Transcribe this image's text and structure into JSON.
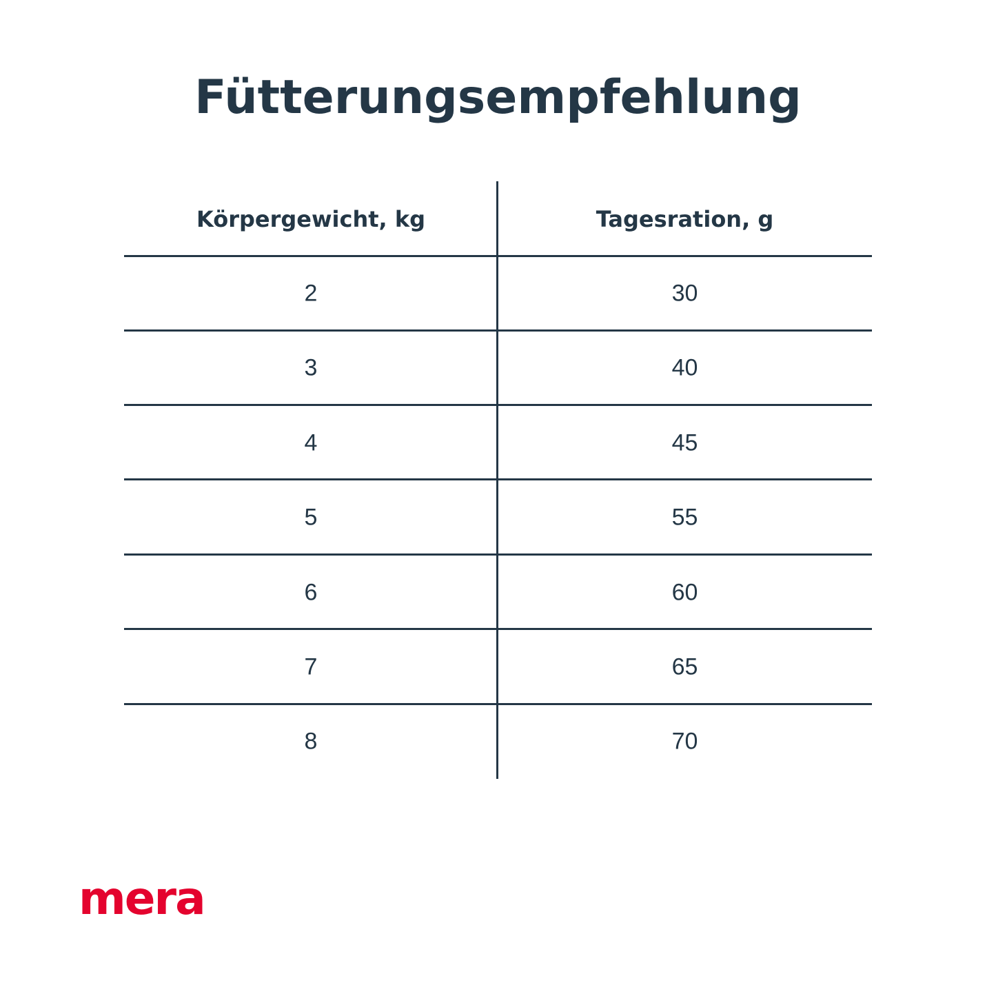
{
  "title": "Fütterungsempfehlung",
  "table": {
    "headers": [
      "Körpergewicht, kg",
      "Tagesration, g"
    ],
    "rows": [
      [
        "2",
        "30"
      ],
      [
        "3",
        "40"
      ],
      [
        "4",
        "45"
      ],
      [
        "5",
        "55"
      ],
      [
        "6",
        "60"
      ],
      [
        "7",
        "65"
      ],
      [
        "8",
        "70"
      ]
    ]
  },
  "logo": {
    "text": "mera",
    "color": "#e4032e"
  },
  "colors": {
    "text": "#243746",
    "lines": "#243746"
  }
}
